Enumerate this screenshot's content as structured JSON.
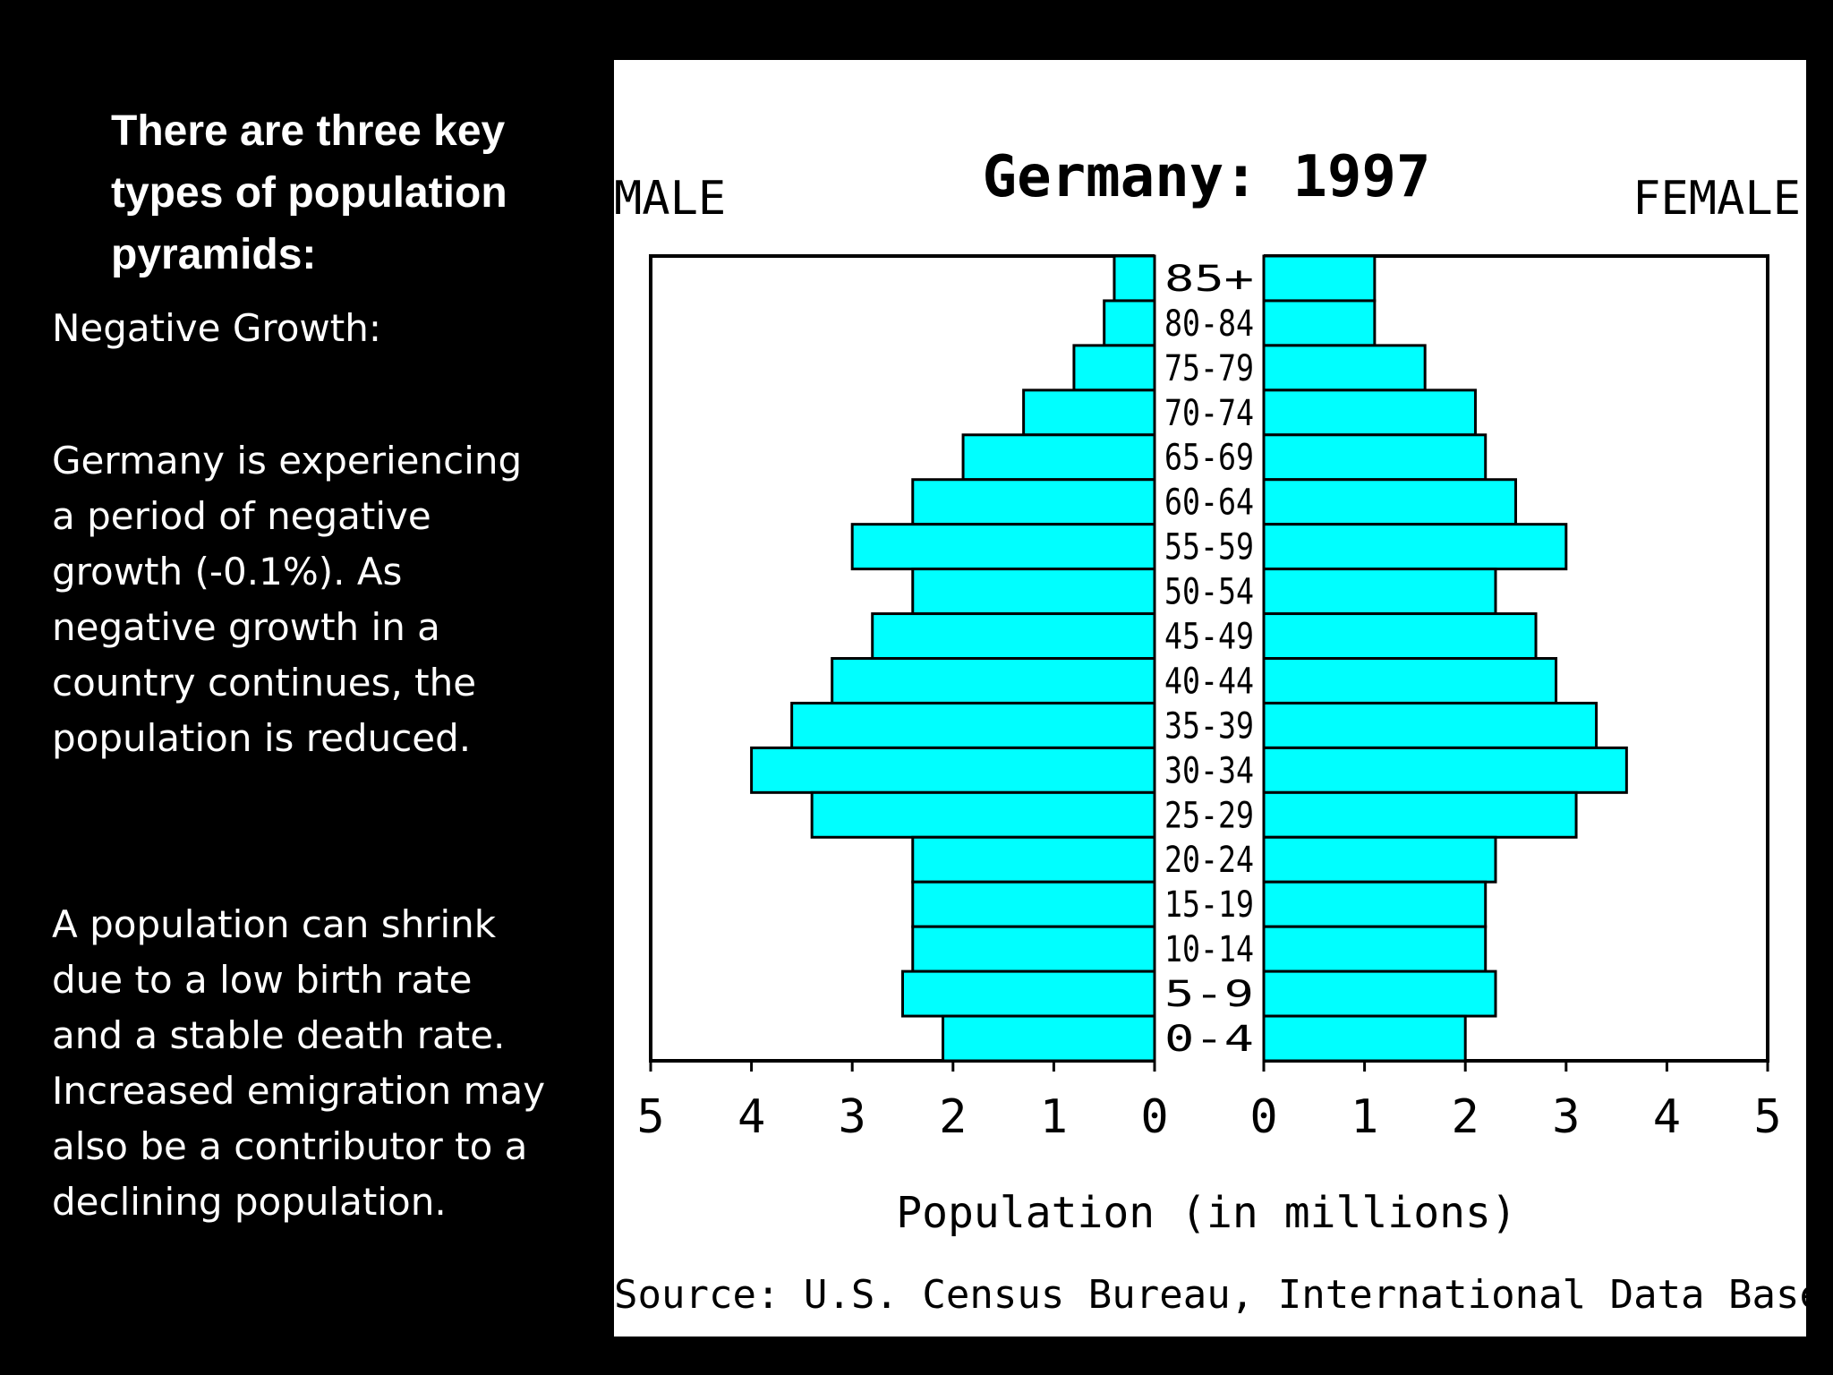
{
  "slide": {
    "heading": "There are three key types of population pyramids:",
    "subtitle": "Negative Growth:",
    "paragraph1": "Germany is experiencing a period of negative growth (-0.1%). As negative growth in a country continues, the population is reduced.",
    "paragraph2": "A population can shrink due to a low birth rate and a stable death rate. Increased emigration may also be a contributor to a declining population."
  },
  "colors": {
    "bar": "#00FFFF",
    "outline": "#000000",
    "background": "#FFFFFF"
  },
  "chart_data": {
    "type": "bar",
    "orientation": "horizontal-pyramid",
    "title": "Germany: 1997",
    "left_label": "MALE",
    "right_label": "FEMALE",
    "xlabel": "Population (in millions)",
    "source": "Source: U.S. Census Bureau, International Data Base.",
    "xlim": [
      0,
      5
    ],
    "xticks": [
      "0",
      "1",
      "2",
      "3",
      "4",
      "5"
    ],
    "categories": [
      "85+",
      "80-84",
      "75-79",
      "70-74",
      "65-69",
      "60-64",
      "55-59",
      "50-54",
      "45-49",
      "40-44",
      "35-39",
      "30-34",
      "25-29",
      "20-24",
      "15-19",
      "10-14",
      "5-9",
      "0-4"
    ],
    "series": [
      {
        "name": "MALE",
        "values": [
          0.4,
          0.5,
          0.8,
          1.3,
          1.9,
          2.4,
          3.0,
          2.4,
          2.8,
          3.2,
          3.6,
          4.0,
          3.4,
          2.4,
          2.4,
          2.4,
          2.5,
          2.1
        ]
      },
      {
        "name": "FEMALE",
        "values": [
          1.1,
          1.1,
          1.6,
          2.1,
          2.2,
          2.5,
          3.0,
          2.3,
          2.7,
          2.9,
          3.3,
          3.6,
          3.1,
          2.3,
          2.2,
          2.2,
          2.3,
          2.0
        ]
      }
    ]
  }
}
